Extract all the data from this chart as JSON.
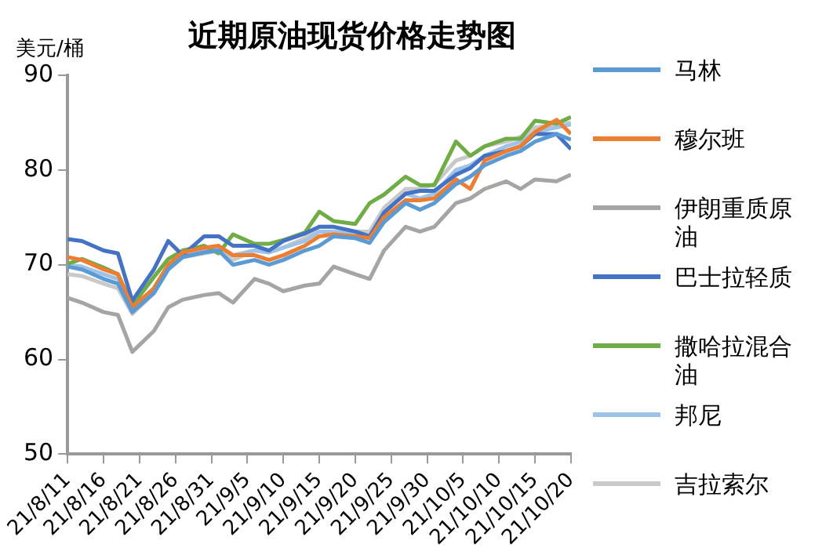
{
  "chart_data": {
    "type": "line",
    "title": "近期原油现货价格走势图",
    "ylabel": "美元/桶",
    "x": [
      "--08-11",
      "--08-13",
      "--08-16",
      "--08-18",
      "--08-20",
      "--08-23",
      "--08-25",
      "--08-27",
      "--08-30",
      "--09-01",
      "--09-03",
      "--09-06",
      "--09-08",
      "--09-10",
      "--09-13",
      "--09-15",
      "--09-17",
      "--09-20",
      "--09-22",
      "--09-24",
      "--09-27",
      "--09-29",
      "--10-01",
      "--10-04",
      "--10-06",
      "--10-08",
      "--10-11",
      "--10-13",
      "--10-15",
      "--10-18",
      "--10-20"
    ],
    "series": [
      {
        "name": "马林",
        "color": "#5b9bd5",
        "values": [
          69.8,
          69.5,
          68.5,
          68,
          65.0,
          67,
          69.5,
          70.8,
          71.3,
          71.5,
          70.0,
          70.5,
          70.0,
          70.5,
          71.5,
          72.0,
          73.0,
          72.8,
          72.3,
          74.5,
          76.5,
          75.8,
          76.5,
          78.5,
          79.3,
          80.5,
          81.5,
          82.0,
          83.0,
          83.8,
          83.2
        ]
      },
      {
        "name": "穆尔班",
        "color": "#ed7d31",
        "values": [
          70.8,
          70.5,
          69.5,
          69.0,
          65.5,
          67.5,
          70.0,
          71.3,
          71.8,
          72.0,
          71.0,
          71.0,
          70.5,
          71.0,
          72.0,
          73.0,
          73.2,
          73.0,
          72.8,
          75.0,
          76.8,
          76.8,
          77.0,
          79.0,
          78.0,
          81.0,
          82.0,
          82.5,
          84.0,
          85.3,
          83.8
        ]
      },
      {
        "name": "伊朗重质原油",
        "color": "#a5a5a5",
        "values": [
          66.5,
          66.0,
          65.0,
          64.7,
          60.8,
          63.0,
          65.5,
          66.3,
          66.8,
          67.0,
          66.0,
          68.5,
          68.0,
          67.2,
          67.8,
          68.0,
          69.8,
          69.0,
          68.5,
          71.5,
          74.0,
          73.5,
          74.0,
          76.5,
          77.0,
          78.0,
          78.8,
          78.0,
          79.0,
          78.8,
          79.5
        ]
      },
      {
        "name": "巴士拉轻质",
        "color": "#4472c4",
        "values": [
          72.7,
          72.5,
          71.5,
          71.2,
          66.2,
          69.5,
          72.5,
          71.0,
          73.0,
          73.0,
          72.0,
          72.0,
          71.5,
          72.5,
          73.3,
          74.0,
          74.0,
          73.5,
          73.0,
          75.5,
          77.5,
          77.8,
          77.8,
          79.5,
          80.2,
          81.5,
          82.0,
          82.5,
          83.8,
          83.8,
          82.2
        ]
      },
      {
        "name": "撒哈拉混合油",
        "color": "#70ad47",
        "values": [
          70.1,
          70.6,
          69.7,
          69.0,
          65.7,
          68.7,
          70.6,
          71.5,
          72.0,
          71.2,
          73.2,
          72.2,
          72.2,
          72.6,
          73.4,
          75.6,
          74.6,
          74.3,
          76.5,
          77.4,
          79.3,
          78.4,
          78.4,
          83.0,
          81.5,
          82.5,
          83.3,
          83.3,
          85.2,
          84.9,
          85.6
        ]
      },
      {
        "name": "邦尼",
        "color": "#9dc3e6",
        "values": [
          70.0,
          69.8,
          69.0,
          68.5,
          65.2,
          67.5,
          70.0,
          71.0,
          71.5,
          71.8,
          71.0,
          71.5,
          71.3,
          71.8,
          72.5,
          73.5,
          73.5,
          73.3,
          73.0,
          75.5,
          77.5,
          77.0,
          77.5,
          80.0,
          80.5,
          81.5,
          82.5,
          83.0,
          84.0,
          84.5,
          84.8
        ]
      },
      {
        "name": "吉拉索尔",
        "color": "#c9c9c9",
        "values": [
          69.0,
          68.8,
          68.0,
          67.5,
          64.8,
          67.0,
          69.5,
          70.8,
          71.2,
          71.5,
          70.5,
          71.5,
          71.3,
          71.8,
          72.8,
          74.0,
          74.0,
          73.5,
          73.5,
          76.0,
          78.0,
          78.0,
          78.5,
          81.0,
          81.5,
          82.5,
          83.0,
          83.5,
          84.5,
          84.8,
          85.0
        ]
      }
    ],
    "xlim": [
      "--08-11",
      "--10-20"
    ],
    "xticks": [
      {
        "value": "--08-11",
        "label": "21/8/11"
      },
      {
        "value": "--08-16",
        "label": "21/8/16"
      },
      {
        "value": "--08-21",
        "label": "21/8/21"
      },
      {
        "value": "--08-26",
        "label": "21/8/26"
      },
      {
        "value": "--08-31",
        "label": "21/8/31"
      },
      {
        "value": "--09-05",
        "label": "21/9/5"
      },
      {
        "value": "--09-10",
        "label": "21/9/10"
      },
      {
        "value": "--09-15",
        "label": "21/9/15"
      },
      {
        "value": "--09-20",
        "label": "21/9/20"
      },
      {
        "value": "--09-25",
        "label": "21/9/25"
      },
      {
        "value": "--09-30",
        "label": "21/9/30"
      },
      {
        "value": "--10-05",
        "label": "21/10/5"
      },
      {
        "value": "--10-10",
        "label": "21/10/10"
      },
      {
        "value": "--10-15",
        "label": "21/10/15"
      },
      {
        "value": "--10-20",
        "label": "21/10/20"
      }
    ],
    "ylim": [
      50,
      90
    ],
    "yticks": [
      50,
      60,
      70,
      80,
      90
    ],
    "grid": false,
    "legend": "right",
    "marker": "none",
    "line_style": "solid"
  }
}
